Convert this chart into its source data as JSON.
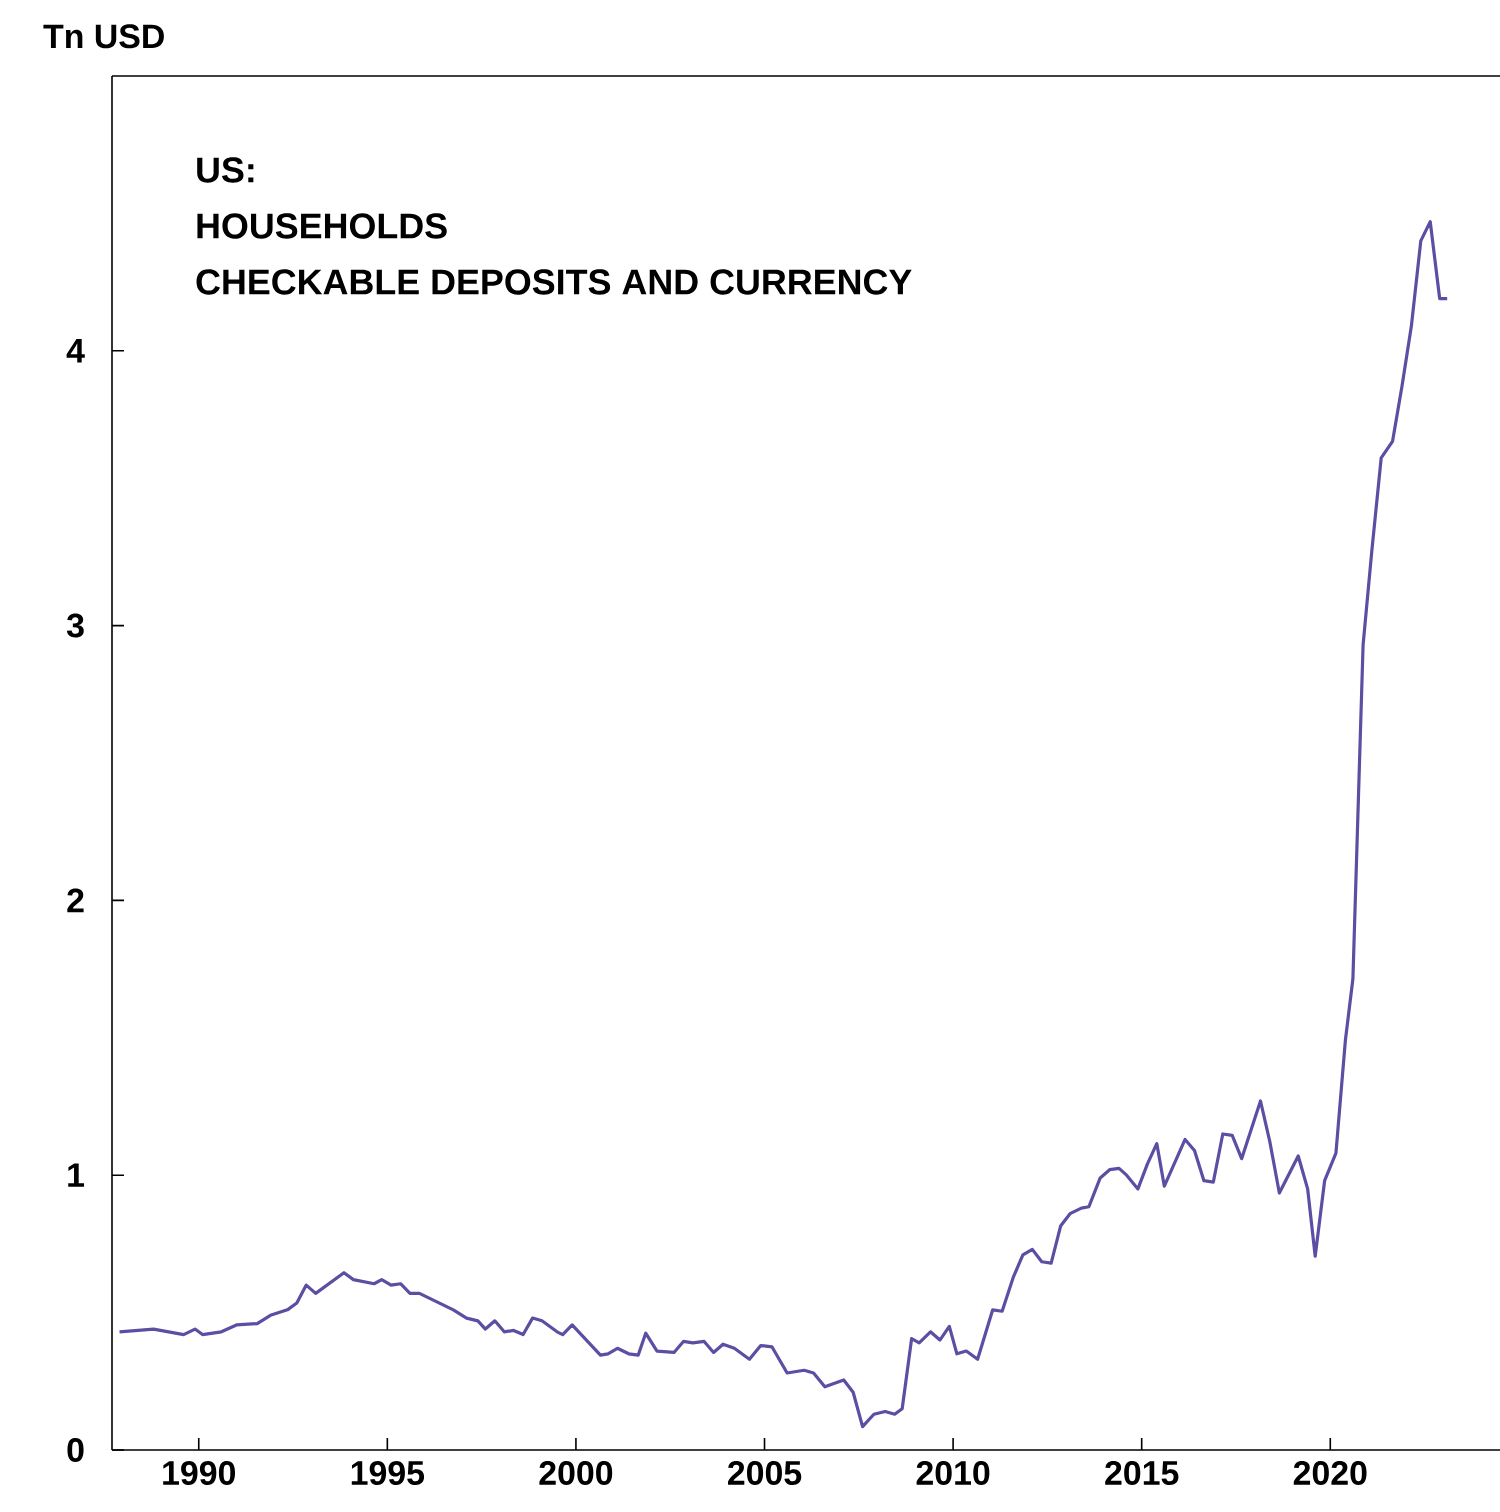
{
  "chart_data": {
    "type": "line",
    "title": "US:",
    "subtitle": "HOUSEHOLDS",
    "annotations": [
      "CHECKABLE DEPOSITS AND CURRENCY"
    ],
    "ylabel": "Tn USD",
    "xlim": [
      1987.7,
      2024.5
    ],
    "ylim": [
      0,
      5
    ],
    "xticks": [
      1990,
      1995,
      2000,
      2005,
      2010,
      2015,
      2020
    ],
    "yticks": [
      0,
      1,
      2,
      3,
      4
    ],
    "series": [
      {
        "color": "#5b4ea3",
        "x": [
          1987.9,
          1988.8,
          1989.6,
          1989.9,
          1990.1,
          1990.6,
          1991.0,
          1991.55,
          1991.9,
          1992.35,
          1992.6,
          1992.85,
          1993.1,
          1993.85,
          1994.1,
          1994.65,
          1994.85,
          1995.1,
          1995.35,
          1995.6,
          1995.85,
          1996.75,
          1997.1,
          1997.4,
          1997.6,
          1997.85,
          1998.1,
          1998.35,
          1998.6,
          1998.85,
          1999.1,
          1999.5,
          1999.65,
          1999.9,
          2000.65,
          2000.85,
          2001.1,
          2001.4,
          2001.65,
          2001.85,
          2002.15,
          2002.6,
          2002.85,
          2003.1,
          2003.4,
          2003.65,
          2003.9,
          2004.2,
          2004.6,
          2004.9,
          2005.2,
          2005.6,
          2006.05,
          2006.3,
          2006.6,
          2007.1,
          2007.35,
          2007.6,
          2007.9,
          2008.2,
          2008.45,
          2008.65,
          2008.9,
          2009.1,
          2009.4,
          2009.65,
          2009.9,
          2010.1,
          2010.35,
          2010.65,
          2011.05,
          2011.3,
          2011.6,
          2011.85,
          2012.1,
          2012.35,
          2012.6,
          2012.85,
          2013.1,
          2013.4,
          2013.6,
          2013.9,
          2014.15,
          2014.4,
          2014.6,
          2014.9,
          2015.15,
          2015.4,
          2015.6,
          2016.15,
          2016.4,
          2016.65,
          2016.9,
          2017.15,
          2017.4,
          2017.65,
          2018.15,
          2018.4,
          2018.65,
          2019.15,
          2019.4,
          2019.6,
          2019.85,
          2020.15,
          2020.4,
          2020.6,
          2020.87,
          2021.1,
          2021.35,
          2021.65,
          2021.9,
          2022.15,
          2022.4,
          2022.65,
          2022.9,
          2023.1
        ],
        "values": [
          0.43,
          0.44,
          0.42,
          0.44,
          0.42,
          0.43,
          0.455,
          0.46,
          0.49,
          0.51,
          0.535,
          0.6,
          0.57,
          0.645,
          0.62,
          0.605,
          0.62,
          0.6,
          0.605,
          0.57,
          0.57,
          0.51,
          0.48,
          0.47,
          0.44,
          0.47,
          0.43,
          0.435,
          0.42,
          0.48,
          0.47,
          0.43,
          0.42,
          0.455,
          0.345,
          0.35,
          0.37,
          0.35,
          0.345,
          0.425,
          0.36,
          0.355,
          0.395,
          0.39,
          0.395,
          0.355,
          0.385,
          0.37,
          0.33,
          0.38,
          0.375,
          0.28,
          0.29,
          0.28,
          0.23,
          0.255,
          0.21,
          0.085,
          0.13,
          0.14,
          0.13,
          0.15,
          0.405,
          0.39,
          0.43,
          0.4,
          0.45,
          0.35,
          0.36,
          0.33,
          0.51,
          0.505,
          0.63,
          0.71,
          0.73,
          0.685,
          0.68,
          0.815,
          0.86,
          0.88,
          0.885,
          0.99,
          1.02,
          1.025,
          1.0,
          0.95,
          1.04,
          1.115,
          0.96,
          1.13,
          1.09,
          0.98,
          0.975,
          1.15,
          1.145,
          1.06,
          1.27,
          1.12,
          0.935,
          1.07,
          0.95,
          0.705,
          0.98,
          1.08,
          1.49,
          1.715,
          2.93,
          3.27,
          3.61,
          3.67,
          3.87,
          4.09,
          4.4,
          4.47,
          4.19,
          4.19
        ]
      }
    ]
  }
}
